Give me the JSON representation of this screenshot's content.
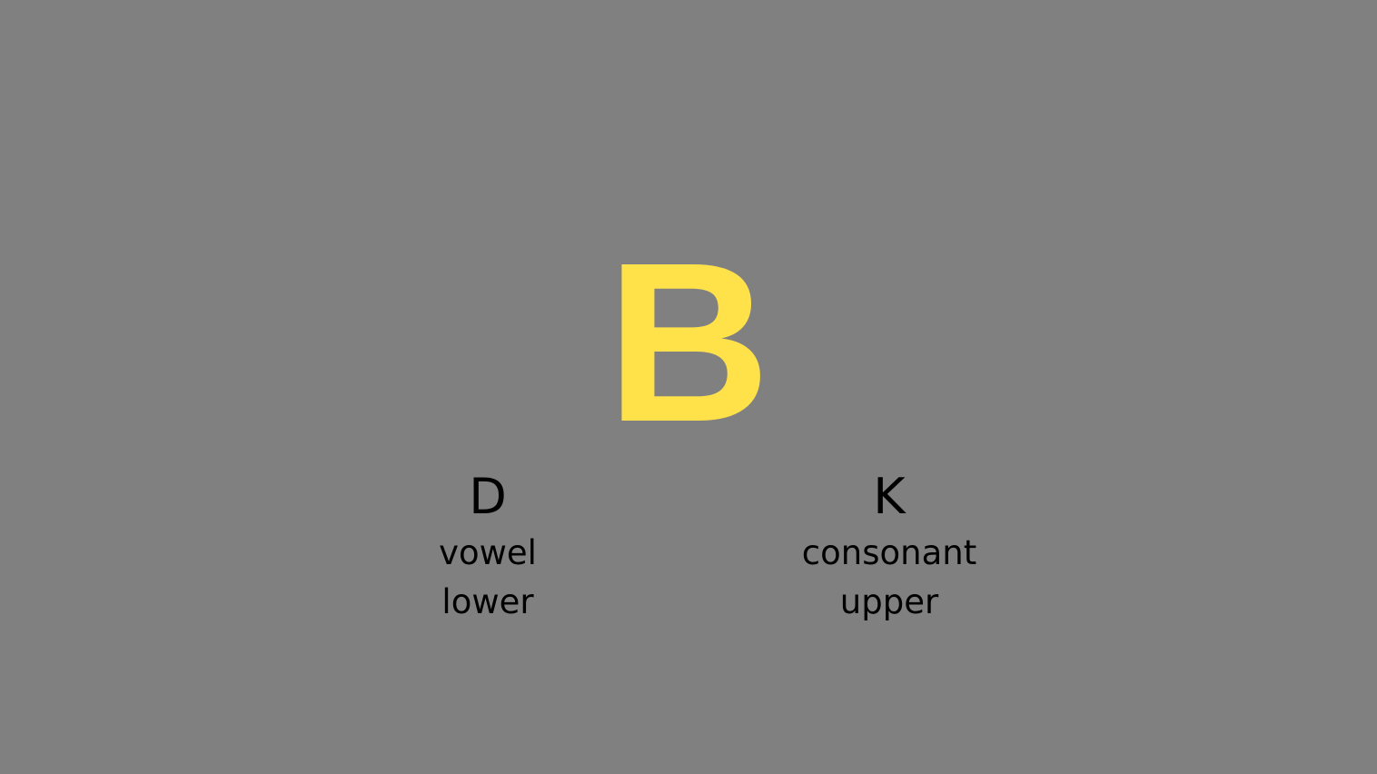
{
  "stimulus": {
    "letter": "B",
    "color": "#ffe14a"
  },
  "options": [
    {
      "key": "D",
      "category": "vowel",
      "case": "lower"
    },
    {
      "key": "K",
      "category": "consonant",
      "case": "upper"
    }
  ],
  "background_color": "#808080"
}
